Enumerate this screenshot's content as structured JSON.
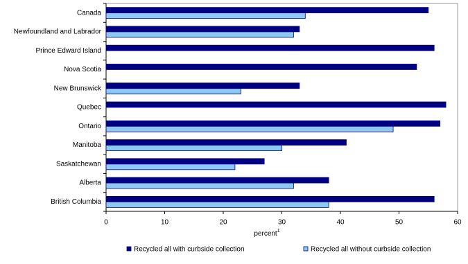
{
  "chart_data": {
    "type": "hbar",
    "categories": [
      "Canada",
      "Newfoundland and Labrador",
      "Prince Edward Island",
      "Nova Scotia",
      "New Brunswick",
      "Quebec",
      "Ontario",
      "Manitoba",
      "Saskatchewan",
      "Alberta",
      "British Columbia"
    ],
    "series": [
      {
        "name": "Recycled all with curbside collection",
        "color": "#000080",
        "values": [
          55,
          33,
          56,
          53,
          33,
          58,
          57,
          41,
          27,
          38,
          56
        ]
      },
      {
        "name": "Recycled all without curbside collection",
        "color": "#8ec8f4",
        "values": [
          34,
          32,
          null,
          null,
          23,
          null,
          49,
          30,
          22,
          32,
          38
        ]
      }
    ],
    "xlabel": "percent",
    "xlabel_footnote": "1",
    "xlim": [
      0,
      60
    ],
    "xticks": [
      0,
      10,
      20,
      30,
      40,
      50,
      60
    ],
    "grid": false
  }
}
